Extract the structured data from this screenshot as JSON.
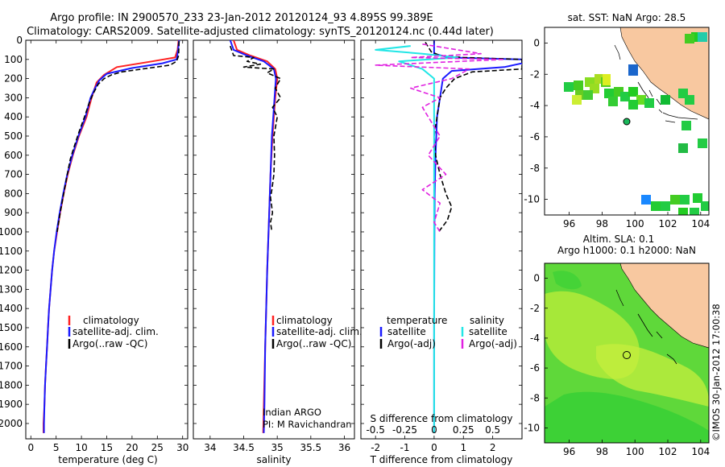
{
  "title": {
    "line1": "Argo profile: IN 2900570_233 23-Jan-2012 20120124_93 4.895S 99.389E",
    "line2": "Climatology: CARS2009. Satellite-adjusted climatology: synTS_20120124.nc (0.44d later)"
  },
  "colors": {
    "clim": "#ff2020",
    "sat": "#1a1aff",
    "argo": "#000000",
    "sat_t": "#1a1aff",
    "sat_s": "#22e6e6",
    "argo_s": "#e020e0",
    "land": "#f8c8a0",
    "ocean": "#ffffff"
  },
  "depth_ticks": [
    "0",
    "100",
    "200",
    "300",
    "400",
    "500",
    "600",
    "700",
    "800",
    "900",
    "1000",
    "1100",
    "1200",
    "1300",
    "1400",
    "1500",
    "1600",
    "1700",
    "1800",
    "1900",
    "2000"
  ],
  "credit": "©IMOS 30-Jan-2012 17:00:38",
  "chart_data": [
    {
      "type": "line",
      "panel": "temperature",
      "xlabel": "temperature (deg C)",
      "ylabel": "",
      "xlim": [
        -1,
        31
      ],
      "ylim": [
        2080,
        0
      ],
      "xticks": [
        "0",
        "5",
        "10",
        "15",
        "20",
        "25",
        "30"
      ],
      "legend": [
        "climatology",
        "satellite-adj. clim.",
        "Argo(..raw -QC)"
      ],
      "series": [
        {
          "name": "climatology",
          "points": [
            [
              29.2,
              0
            ],
            [
              29.0,
              50
            ],
            [
              28.5,
              90
            ],
            [
              24,
              110
            ],
            [
              17,
              140
            ],
            [
              14.5,
              180
            ],
            [
              13,
              220
            ],
            [
              12,
              300
            ],
            [
              11,
              400
            ],
            [
              9.5,
              500
            ],
            [
              8.3,
              600
            ],
            [
              7.3,
              700
            ],
            [
              6.5,
              800
            ],
            [
              5.8,
              900
            ],
            [
              5.2,
              1000
            ],
            [
              4.6,
              1100
            ],
            [
              4.2,
              1200
            ],
            [
              3.9,
              1300
            ],
            [
              3.6,
              1400
            ],
            [
              3.4,
              1500
            ],
            [
              3.2,
              1600
            ],
            [
              3.0,
              1700
            ],
            [
              2.8,
              1800
            ],
            [
              2.7,
              1900
            ],
            [
              2.5,
              2000
            ],
            [
              2.5,
              2050
            ]
          ]
        },
        {
          "name": "satellite-adj. clim.",
          "points": [
            [
              29.3,
              0
            ],
            [
              29.1,
              50
            ],
            [
              28.8,
              100
            ],
            [
              26,
              120
            ],
            [
              20,
              145
            ],
            [
              15,
              175
            ],
            [
              13.5,
              210
            ],
            [
              12.5,
              260
            ],
            [
              11.8,
              300
            ],
            [
              10.8,
              400
            ],
            [
              9.4,
              500
            ],
            [
              8.2,
              600
            ],
            [
              7.2,
              700
            ],
            [
              6.4,
              800
            ],
            [
              5.7,
              900
            ],
            [
              5.1,
              1000
            ],
            [
              4.6,
              1100
            ],
            [
              4.2,
              1200
            ],
            [
              3.9,
              1300
            ],
            [
              3.6,
              1400
            ],
            [
              3.4,
              1500
            ],
            [
              3.2,
              1600
            ],
            [
              3.0,
              1700
            ],
            [
              2.8,
              1800
            ],
            [
              2.7,
              1900
            ],
            [
              2.6,
              2000
            ],
            [
              2.6,
              2050
            ]
          ]
        },
        {
          "name": "Argo(..raw -QC)",
          "points": [
            [
              29.3,
              5
            ],
            [
              29.2,
              80
            ],
            [
              28.8,
              110
            ],
            [
              27.5,
              130
            ],
            [
              22,
              150
            ],
            [
              18,
              165
            ],
            [
              16,
              180
            ],
            [
              14.5,
              200
            ],
            [
              13.3,
              230
            ],
            [
              12.3,
              280
            ],
            [
              11.5,
              330
            ],
            [
              10.6,
              400
            ],
            [
              9.5,
              480
            ],
            [
              8.5,
              560
            ],
            [
              7.8,
              620
            ],
            [
              7.2,
              700
            ],
            [
              6.5,
              800
            ],
            [
              5.8,
              900
            ],
            [
              5.2,
              1000
            ]
          ]
        }
      ]
    },
    {
      "type": "line",
      "panel": "salinity",
      "xlabel": "salinity",
      "ylabel": "",
      "xlim": [
        33.75,
        36.15
      ],
      "ylim": [
        2080,
        0
      ],
      "xticks": [
        "34",
        "34.5",
        "35",
        "35.5",
        "36"
      ],
      "legend": [
        "climatology",
        "satellite-adj. clim.",
        "Argo(..raw -QC)"
      ],
      "annotation": [
        "Indian ARGO",
        "PI: M Ravichandran"
      ],
      "series": [
        {
          "name": "climatology",
          "points": [
            [
              34.35,
              0
            ],
            [
              34.4,
              50
            ],
            [
              34.6,
              80
            ],
            [
              34.85,
              110
            ],
            [
              34.97,
              150
            ],
            [
              35.0,
              200
            ],
            [
              34.97,
              300
            ],
            [
              34.95,
              400
            ],
            [
              34.93,
              500
            ],
            [
              34.9,
              700
            ],
            [
              34.88,
              900
            ],
            [
              34.85,
              1200
            ],
            [
              34.82,
              1600
            ],
            [
              34.8,
              1900
            ],
            [
              34.79,
              2050
            ]
          ]
        },
        {
          "name": "satellite-adj. clim.",
          "points": [
            [
              34.3,
              0
            ],
            [
              34.35,
              50
            ],
            [
              34.55,
              80
            ],
            [
              34.8,
              110
            ],
            [
              34.95,
              150
            ],
            [
              34.98,
              200
            ],
            [
              34.96,
              300
            ],
            [
              34.94,
              400
            ],
            [
              34.92,
              500
            ],
            [
              34.9,
              700
            ],
            [
              34.88,
              900
            ],
            [
              34.85,
              1200
            ],
            [
              34.82,
              1600
            ],
            [
              34.81,
              1900
            ],
            [
              34.8,
              2050
            ]
          ]
        },
        {
          "name": "Argo(..raw -QC)",
          "points": [
            [
              34.3,
              30
            ],
            [
              34.35,
              80
            ],
            [
              34.65,
              90
            ],
            [
              34.55,
              110
            ],
            [
              34.75,
              125
            ],
            [
              34.5,
              140
            ],
            [
              34.95,
              150
            ],
            [
              34.85,
              170
            ],
            [
              35.05,
              200
            ],
            [
              34.97,
              250
            ],
            [
              35.05,
              300
            ],
            [
              34.93,
              350
            ],
            [
              35.0,
              400
            ],
            [
              34.95,
              500
            ],
            [
              34.96,
              600
            ],
            [
              34.95,
              700
            ],
            [
              34.92,
              780
            ],
            [
              34.9,
              820
            ],
            [
              34.93,
              900
            ],
            [
              34.9,
              950
            ],
            [
              34.92,
              1000
            ]
          ]
        }
      ]
    },
    {
      "type": "line",
      "panel": "difference",
      "xlabel": "T difference from climatology",
      "xlabel2": "S difference from climatology",
      "xlim": [
        -2.5,
        3.0
      ],
      "ylim": [
        2080,
        0
      ],
      "xticks": [
        "-2",
        "-1",
        "0",
        "1",
        "2"
      ],
      "xticks2": [
        "-0.5",
        "-0.25",
        "0",
        "0.25",
        "0.5"
      ],
      "legend": {
        "temperature": [
          "satellite",
          "Argo(-adj)"
        ],
        "salinity": [
          "satellite",
          "Argo(-adj)"
        ]
      },
      "legend_headers": [
        "temperature",
        "salinity"
      ],
      "series": [
        {
          "name": "temperature satellite",
          "points": [
            [
              0,
              0
            ],
            [
              0,
              70
            ],
            [
              0.5,
              90
            ],
            [
              3.0,
              100
            ],
            [
              3.0,
              120
            ],
            [
              2.4,
              140
            ],
            [
              0.6,
              160
            ],
            [
              0.3,
              200
            ],
            [
              0.2,
              300
            ],
            [
              0.1,
              400
            ],
            [
              0.05,
              600
            ],
            [
              0.02,
              800
            ],
            [
              0.01,
              1000
            ],
            [
              0,
              1500
            ],
            [
              0,
              2000
            ],
            [
              0,
              2050
            ]
          ]
        },
        {
          "name": "temperature Argo(-adj)",
          "points": [
            [
              -0.3,
              10
            ],
            [
              -0.1,
              60
            ],
            [
              0.2,
              80
            ],
            [
              1.0,
              90
            ],
            [
              3.0,
              100
            ],
            [
              3.0,
              150
            ],
            [
              1.3,
              165
            ],
            [
              0.7,
              200
            ],
            [
              0.4,
              250
            ],
            [
              0.2,
              300
            ],
            [
              0.1,
              400
            ],
            [
              0,
              500
            ],
            [
              0.05,
              600
            ],
            [
              0.2,
              700
            ],
            [
              0.4,
              800
            ],
            [
              0.6,
              870
            ],
            [
              0.45,
              940
            ],
            [
              0.15,
              1000
            ]
          ]
        },
        {
          "name": "salinity satellite",
          "points": [
            [
              -0.2,
              30
            ],
            [
              -0.5,
              50
            ],
            [
              -0.1,
              70
            ],
            [
              0.2,
              90
            ],
            [
              -0.3,
              110
            ],
            [
              -0.1,
              150
            ],
            [
              0.0,
              200
            ],
            [
              0.0,
              300
            ],
            [
              0.0,
              400
            ],
            [
              0.0,
              600
            ],
            [
              0.0,
              800
            ],
            [
              0.0,
              1000
            ],
            [
              0.0,
              1500
            ],
            [
              0.0,
              2000
            ],
            [
              0.0,
              2050
            ]
          ]
        },
        {
          "name": "salinity Argo(-adj)",
          "points": [
            [
              -0.1,
              20
            ],
            [
              0.2,
              50
            ],
            [
              0.4,
              70
            ],
            [
              -0.2,
              90
            ],
            [
              0.6,
              100
            ],
            [
              -0.5,
              130
            ],
            [
              0.3,
              150
            ],
            [
              0.15,
              200
            ],
            [
              -0.2,
              250
            ],
            [
              0.05,
              300
            ],
            [
              -0.1,
              350
            ],
            [
              -0.05,
              400
            ],
            [
              0.05,
              500
            ],
            [
              -0.05,
              600
            ],
            [
              0.1,
              700
            ],
            [
              -0.1,
              780
            ],
            [
              0.05,
              850
            ],
            [
              0.0,
              950
            ],
            [
              0.05,
              1000
            ]
          ]
        }
      ]
    },
    {
      "type": "heatmap",
      "panel": "sst_map",
      "title": "sat. SST: NaN Argo: 28.5",
      "xlim": [
        94.5,
        104.5
      ],
      "ylim": [
        -11,
        1
      ],
      "xticks": [
        "96",
        "98",
        "100",
        "102",
        "104"
      ],
      "yticks": [
        "0",
        "-2",
        "-4",
        "-6",
        "-8",
        "-10"
      ],
      "argo_position": [
        99.389,
        -4.895
      ]
    },
    {
      "type": "heatmap",
      "panel": "sla_map",
      "title": "Altim. SLA: 0.1",
      "subtitle": "Argo h1000: 0.1 h2000: NaN",
      "xlim": [
        94.5,
        104.5
      ],
      "ylim": [
        -11,
        1
      ],
      "xticks": [
        "96",
        "98",
        "100",
        "102",
        "104"
      ],
      "yticks": [
        "0",
        "-2",
        "-4",
        "-6",
        "-8",
        "-10"
      ],
      "argo_position": [
        99.389,
        -4.895
      ]
    }
  ]
}
